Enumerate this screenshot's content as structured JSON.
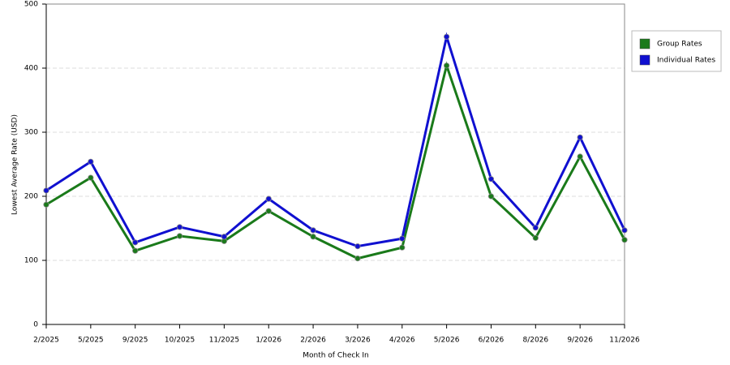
{
  "chart_data": {
    "type": "line",
    "x_label": "Month of Check In",
    "y_label": "Lowest Average Rate (USD)",
    "categories": [
      "2/2025",
      "5/2025",
      "9/2025",
      "10/2025",
      "11/2025",
      "1/2026",
      "2/2026",
      "3/2026",
      "4/2026",
      "5/2026",
      "6/2026",
      "8/2026",
      "9/2026",
      "11/2026"
    ],
    "series": [
      {
        "name": "Group Rates",
        "color": "#1a7a1a",
        "values": [
          187,
          229,
          115,
          138,
          130,
          177,
          137,
          103,
          120,
          404,
          200,
          135,
          262,
          132
        ]
      },
      {
        "name": "Individual Rates",
        "color": "#1010d0",
        "values": [
          209,
          254,
          128,
          152,
          137,
          196,
          147,
          122,
          134,
          449,
          227,
          151,
          292,
          147
        ]
      }
    ],
    "ylim": [
      0,
      500
    ],
    "yticks": [
      0,
      100,
      200,
      300,
      400,
      500
    ],
    "grid": true,
    "legend": "right"
  }
}
